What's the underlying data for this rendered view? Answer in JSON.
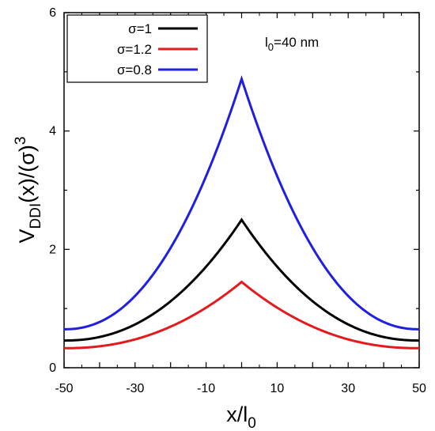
{
  "chart_data": {
    "type": "line",
    "xlabel": {
      "main": "x/l",
      "sub": "0"
    },
    "ylabel": {
      "main": "V",
      "sub": "DDI",
      "rest": "(x)/(σ)",
      "sup": "3"
    },
    "xlim": [
      -50,
      50
    ],
    "ylim": [
      0,
      6
    ],
    "xticks": [
      -50,
      -30,
      -10,
      10,
      30,
      50
    ],
    "yticks": [
      0,
      2,
      4,
      6
    ],
    "annotation": {
      "main": "l",
      "sub": "0",
      "rest": "=40 nm"
    },
    "legend_position": "top-left",
    "series": [
      {
        "name": "σ=1",
        "color": "#000000",
        "peak": 2.5,
        "edge": 0.46
      },
      {
        "name": "σ=1.2",
        "color": "#e41a1c",
        "peak": 1.45,
        "edge": 0.33
      },
      {
        "name": "σ=0.8",
        "color": "#1f1fe0",
        "peak": 4.88,
        "edge": 0.65
      }
    ]
  }
}
